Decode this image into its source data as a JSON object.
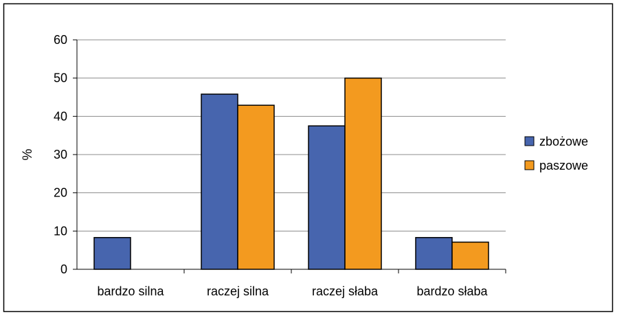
{
  "chart_data": {
    "type": "bar",
    "title": "",
    "xlabel": "",
    "ylabel": "%",
    "ylim": [
      0,
      60
    ],
    "yticks": [
      0,
      10,
      20,
      30,
      40,
      50,
      60
    ],
    "grid": true,
    "legend_position": "right",
    "categories": [
      "bardzo silna",
      "raczej silna",
      "raczej słaba",
      "bardzo słaba"
    ],
    "series": [
      {
        "name": "zbożowe",
        "color": "#4765AE",
        "values": [
          8.3,
          45.8,
          37.5,
          8.3
        ]
      },
      {
        "name": "paszowe",
        "color": "#F39A1F",
        "values": [
          0,
          42.9,
          50.0,
          7.1
        ]
      }
    ]
  }
}
